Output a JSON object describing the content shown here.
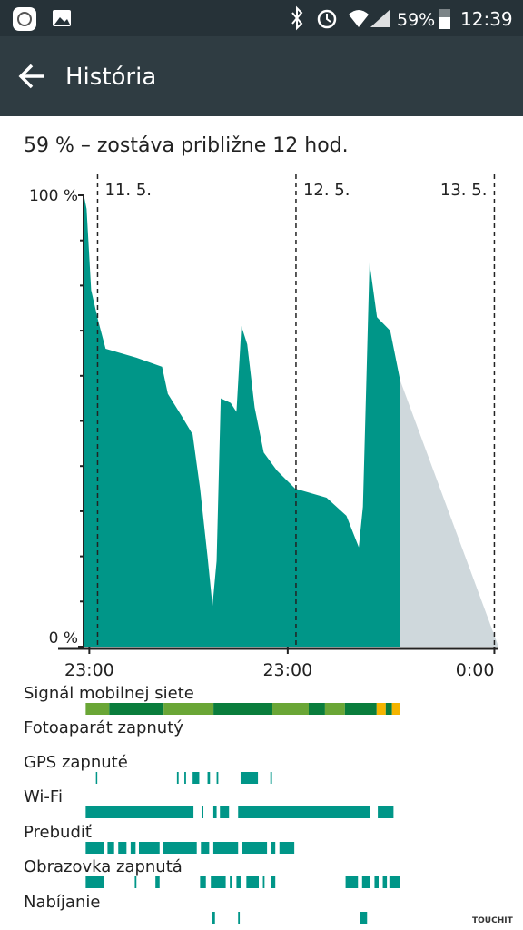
{
  "status_bar": {
    "battery": "59%",
    "time": "12:39"
  },
  "header": {
    "title": "História"
  },
  "summary": "59 % – zostáva približne 12 hod.",
  "chart_data": {
    "type": "area",
    "xlim": [
      -0.7,
      49.5
    ],
    "ylim": [
      0,
      100
    ],
    "xticks": [
      {
        "value": 0,
        "label": "23:00"
      },
      {
        "value": 24,
        "label": "23:00"
      },
      {
        "value": 49,
        "label": "0:00"
      }
    ],
    "yticks": [
      {
        "value": 0,
        "label": "0 %"
      },
      {
        "value": 100,
        "label": "100 %"
      }
    ],
    "yminorticks": [
      10,
      20,
      30,
      40,
      50,
      60,
      70,
      80,
      90
    ],
    "date_lines": [
      {
        "value": 1,
        "label": "11. 5."
      },
      {
        "value": 25,
        "label": "12. 5."
      },
      {
        "value": 49,
        "label": "13. 5."
      }
    ],
    "series": [
      {
        "color": "#009688",
        "x": [
          -0.66,
          -0.33,
          0.22,
          1.1,
          1.97,
          5.7,
          8.8,
          9.5,
          11.2,
          12.5,
          13.4,
          14.3,
          14.9,
          15.4,
          15.9,
          17.1,
          17.8,
          18.4,
          19.1,
          20.0,
          21.1,
          22.7,
          24.9,
          28.7,
          31.1,
          32.6,
          33.1,
          33.9,
          34.8,
          36.4,
          37.6
        ],
        "values": [
          100,
          97,
          79,
          72,
          66,
          64,
          62,
          56,
          51,
          47,
          35,
          20,
          9,
          19,
          55,
          54,
          52,
          71,
          67,
          53,
          43,
          39,
          35,
          33,
          29,
          22,
          31,
          85,
          73,
          70,
          59
        ]
      },
      {
        "color": "#cfd8dc",
        "x": [
          37.6,
          49.5
        ],
        "values": [
          59,
          0
        ]
      }
    ]
  },
  "tracks": [
    {
      "label": "Signál mobilnej siete",
      "color": "#0a7d3c",
      "segments": [
        [
          -0.44,
          2.41
        ],
        [
          2.41,
          8.99
        ],
        [
          8.99,
          15.02
        ],
        [
          15.02,
          22.15
        ],
        [
          22.15,
          26.54
        ],
        [
          26.54,
          28.51
        ],
        [
          28.51,
          30.92
        ],
        [
          30.92,
          34.76
        ],
        [
          34.76,
          35.86
        ],
        [
          35.86,
          36.62
        ],
        [
          36.62,
          37.61
        ]
      ],
      "colors": [
        "#6aa636",
        "#0a7d3c",
        "#6aa636",
        "#0a7d3c",
        "#6aa636",
        "#0a7d3c",
        "#6aa636",
        "#0a7d3c",
        "#f4b400",
        "#0a7d3c",
        "#f4b400"
      ]
    },
    {
      "label": "Fotoaparát zapnutý",
      "color": "#009688",
      "segments": []
    },
    {
      "label": "GPS zapnuté",
      "color": "#009688",
      "segments": [
        [
          0.8,
          0.9
        ],
        [
          10.6,
          10.8
        ],
        [
          11.5,
          11.7
        ],
        [
          12.5,
          13.3
        ],
        [
          14.3,
          14.6
        ],
        [
          15.4,
          15.6
        ],
        [
          18.3,
          20.4
        ],
        [
          21.9,
          22.1
        ]
      ]
    },
    {
      "label": "Wi-Fi",
      "color": "#009688",
      "segments": [
        [
          -0.44,
          12.6
        ],
        [
          13.6,
          13.8
        ],
        [
          15.0,
          15.4
        ],
        [
          15.8,
          16.9
        ],
        [
          18.0,
          34.0
        ],
        [
          34.9,
          36.8
        ]
      ]
    },
    {
      "label": "Prebudiť",
      "color": "#009688",
      "segments": [
        [
          -0.44,
          1.8
        ],
        [
          2.2,
          3.0
        ],
        [
          3.5,
          4.5
        ],
        [
          5.0,
          5.6
        ],
        [
          6.0,
          8.5
        ],
        [
          8.9,
          13.0
        ],
        [
          13.5,
          14.5
        ],
        [
          15.0,
          18.0
        ],
        [
          18.5,
          21.5
        ],
        [
          22.0,
          22.5
        ],
        [
          23.0,
          24.8
        ]
      ]
    },
    {
      "label": "Obrazovka zapnutá",
      "color": "#009688",
      "segments": [
        [
          -0.44,
          1.8
        ],
        [
          5.5,
          5.7
        ],
        [
          8.0,
          8.5
        ],
        [
          13.4,
          14.1
        ],
        [
          14.7,
          16.5
        ],
        [
          17.0,
          17.3
        ],
        [
          17.8,
          18.3
        ],
        [
          19.0,
          20.5
        ],
        [
          21.0,
          21.2
        ],
        [
          22.0,
          22.5
        ],
        [
          31.0,
          32.5
        ],
        [
          33.0,
          34.0
        ],
        [
          34.5,
          35.0
        ],
        [
          35.5,
          36.0
        ],
        [
          36.3,
          37.6
        ]
      ]
    },
    {
      "label": "Nabíjanie",
      "color": "#009688",
      "segments": [
        [
          14.9,
          15.2
        ],
        [
          18.0,
          18.2
        ],
        [
          32.7,
          33.6
        ]
      ]
    }
  ],
  "watermark": "TOUCHIT"
}
